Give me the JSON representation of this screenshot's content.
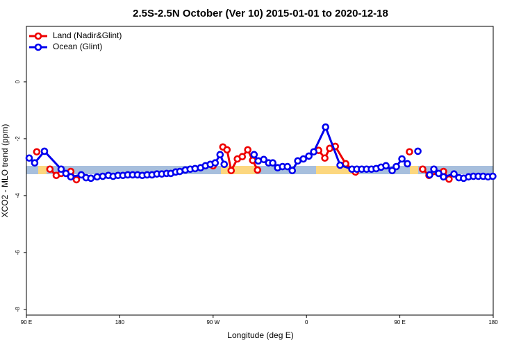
{
  "chart_data": {
    "type": "line",
    "title": "2.5S-2.5N October (Ver 10)   2015-01-01 to 2020-12-18",
    "x_label": "Longitude (deg E)",
    "y_label": "XCO2 - MLO trend (ppm)",
    "xlim": [
      90,
      540
    ],
    "xticks": [
      {
        "value": 90,
        "label": "90 E"
      },
      {
        "value": 180,
        "label": "180"
      },
      {
        "value": 270,
        "label": "90 W"
      },
      {
        "value": 360,
        "label": "0"
      },
      {
        "value": 450,
        "label": "90 E"
      },
      {
        "value": 540,
        "label": "180"
      }
    ],
    "ylim": [
      -8.2,
      1.95
    ],
    "yticks": [
      0,
      -2,
      -4,
      -6,
      -8
    ],
    "grid": false,
    "legend": "top-left",
    "series": [
      {
        "name": "Land (Nadir&Glint)",
        "color": "#ee0000",
        "x": [
          100.0,
          null,
          112.7,
          118.8,
          123.5,
          132.8,
          138.2,
          null,
          270.0,
          null,
          279.4,
          283.4,
          287.4,
          293.4,
          298.1,
          303.4,
          308.1,
          312.8,
          null,
          371.7,
          377.7,
          382.4,
          387.8,
          397.8,
          407.2,
          null,
          459.3,
          null,
          472.0,
          478.1,
          492.1,
          497.4
        ],
        "values": [
          -2.46,
          null,
          -3.07,
          -3.29,
          -3.22,
          -3.15,
          -3.44,
          null,
          -2.95,
          null,
          -2.29,
          -2.39,
          -3.12,
          -2.71,
          -2.63,
          -2.39,
          -2.76,
          -3.1,
          null,
          -2.41,
          -2.68,
          -2.34,
          -2.27,
          -2.88,
          -3.17,
          null,
          -2.46,
          null,
          -3.07,
          -3.29,
          -3.15,
          -3.42
        ]
      },
      {
        "name": "Ocean (Glint)",
        "color": "#0000ee",
        "x": [
          92.7,
          98.0,
          107.4,
          123.5,
          128.1,
          132.8,
          142.9,
          147.5,
          152.2,
          158.2,
          163.6,
          169.0,
          173.6,
          178.3,
          183.0,
          187.7,
          192.4,
          197.1,
          201.7,
          206.4,
          211.1,
          215.8,
          220.5,
          225.2,
          229.2,
          233.9,
          237.9,
          243.2,
          247.9,
          252.6,
          257.9,
          262.6,
          267.3,
          272.0,
          276.7,
          280.7,
          null,
          309.5,
          313.5,
          318.8,
          323.5,
          327.5,
          332.2,
          336.9,
          341.6,
          346.3,
          351.6,
          357.0,
          362.3,
          367.0,
          378.4,
          392.4,
          403.8,
          408.5,
          413.2,
          417.9,
          422.6,
          427.2,
          431.9,
          436.6,
          442.6,
          446.6,
          452.0,
          457.3,
          null,
          467.4,
          null,
          478.7,
          482.8,
          487.4,
          492.1,
          502.2,
          506.9,
          511.5,
          516.2,
          520.9,
          525.6,
          530.3,
          535.0,
          539.6
        ],
        "values": [
          -2.68,
          -2.85,
          -2.44,
          -3.07,
          -3.22,
          -3.34,
          -3.27,
          -3.37,
          -3.39,
          -3.34,
          -3.32,
          -3.29,
          -3.32,
          -3.29,
          -3.29,
          -3.27,
          -3.27,
          -3.27,
          -3.29,
          -3.27,
          -3.27,
          -3.24,
          -3.24,
          -3.22,
          -3.22,
          -3.17,
          -3.15,
          -3.1,
          -3.07,
          -3.05,
          -3.02,
          -2.95,
          -2.9,
          -2.85,
          -2.56,
          -2.9,
          null,
          -2.56,
          -2.78,
          -2.73,
          -2.85,
          -2.85,
          -3.02,
          -2.98,
          -2.98,
          -3.12,
          -2.78,
          -2.71,
          -2.61,
          -2.46,
          -1.59,
          -2.93,
          -3.07,
          -3.07,
          -3.07,
          -3.07,
          -3.07,
          -3.05,
          -3.0,
          -2.95,
          -3.12,
          -2.98,
          -2.71,
          -2.88,
          null,
          -2.44,
          null,
          -3.27,
          -3.07,
          -3.22,
          -3.34,
          -3.24,
          -3.37,
          -3.39,
          -3.34,
          -3.32,
          -3.32,
          -3.32,
          -3.34,
          -3.32
        ]
      }
    ]
  }
}
